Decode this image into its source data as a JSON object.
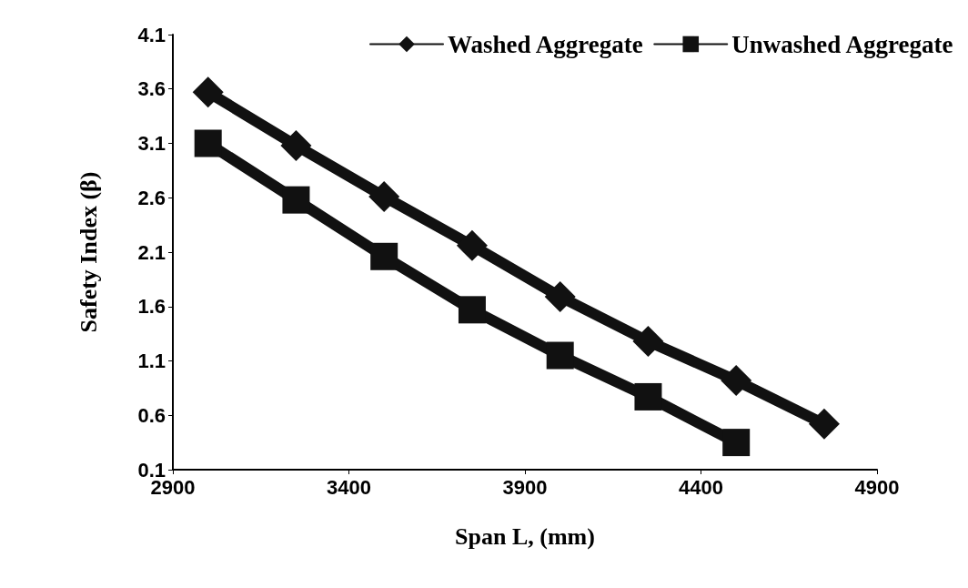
{
  "chart_data": {
    "type": "line",
    "xlabel": "Span L, (mm)",
    "ylabel": "Safety Index (β)",
    "xlim": [
      2900,
      4900
    ],
    "xticks": [
      2900,
      3400,
      3900,
      4400,
      4900
    ],
    "ylim": [
      0.1,
      4.1
    ],
    "yticks": [
      0.1,
      0.6,
      1.1,
      1.6,
      2.1,
      2.6,
      3.1,
      3.6,
      4.1
    ],
    "grid": false,
    "legend": "top right",
    "series": [
      {
        "name": "Washed Aggregate",
        "color": "#111111",
        "marker": "diamond",
        "x": [
          3000,
          3250,
          3500,
          3750,
          4000,
          4250,
          4500,
          4750
        ],
        "values": [
          3.57,
          3.08,
          2.61,
          2.16,
          1.69,
          1.28,
          0.92,
          0.52
        ]
      },
      {
        "name": "Unwashed Aggregate",
        "color": "#111111",
        "marker": "square",
        "x": [
          3000,
          3250,
          3500,
          3750,
          4000,
          4250,
          4500
        ],
        "values": [
          3.1,
          2.58,
          2.06,
          1.57,
          1.15,
          0.77,
          0.35
        ]
      }
    ]
  }
}
